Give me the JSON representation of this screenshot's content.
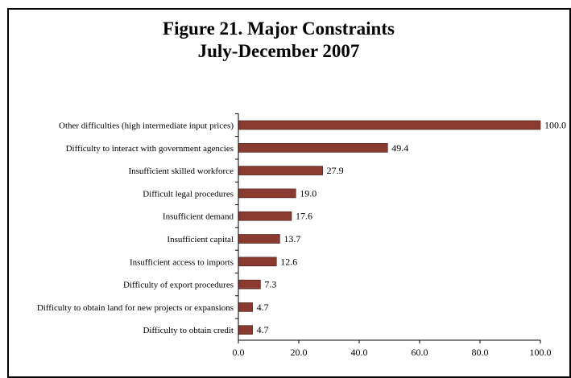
{
  "chart_data": {
    "type": "bar",
    "orientation": "horizontal",
    "title": "Figure 21. Major Constraints",
    "subtitle": "July-December 2007",
    "xlabel": "",
    "ylabel": "",
    "xlim": [
      0,
      100
    ],
    "x_ticks": [
      "0.0",
      "20.0",
      "40.0",
      "60.0",
      "80.0",
      "100.0"
    ],
    "grid": false,
    "bar_color": "#8B3A2F",
    "categories": [
      "Other difficulties (high intermediate input prices)",
      "Difficulty to interact with government agencies",
      "Insufficient skilled workforce",
      "Difficult legal procedures",
      "Insufficient demand",
      "Insufficient capital",
      "Insufficient access to imports",
      "Difficulty of export procedures",
      "Difficulty to obtain land for new projects or expansions",
      "Difficulty to obtain credit"
    ],
    "values": [
      100.0,
      49.4,
      27.9,
      19.0,
      17.6,
      13.7,
      12.6,
      7.3,
      4.7,
      4.7
    ],
    "data_labels": [
      "100.0",
      "49.4",
      "27.9",
      "19.0",
      "17.6",
      "13.7",
      "12.6",
      "7.3",
      "4.7",
      "4.7"
    ]
  }
}
